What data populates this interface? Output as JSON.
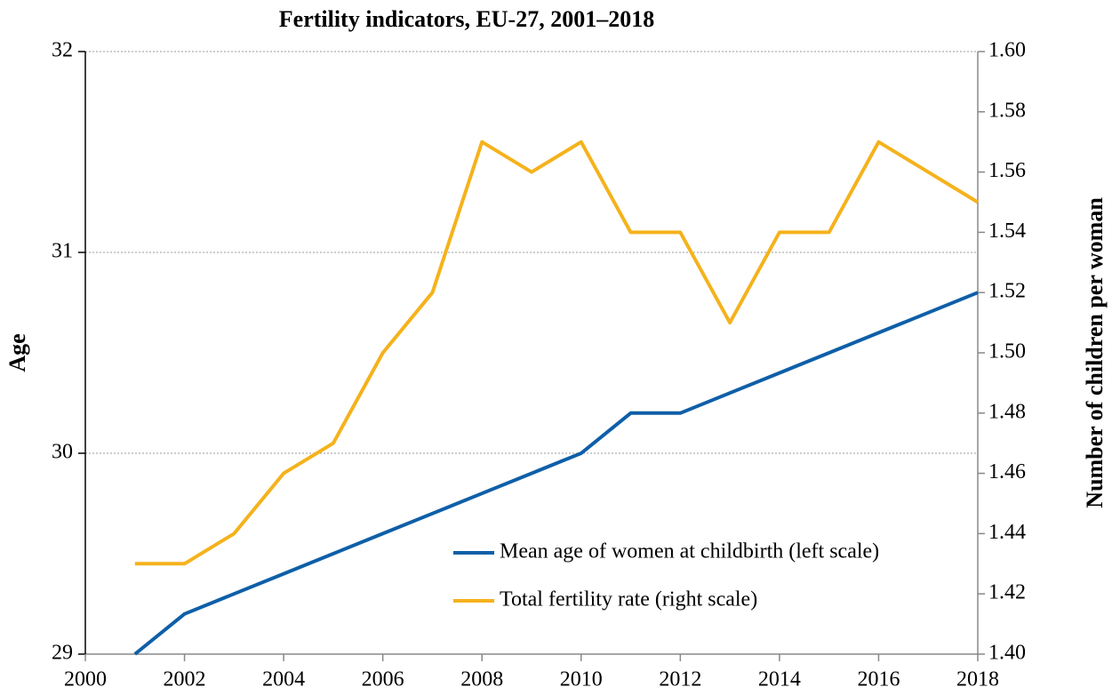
{
  "chart_data": {
    "type": "line",
    "title": "Fertility indicators, EU-27, 2001–2018",
    "y_label": "Age",
    "y2_label": "Number of children per woman",
    "x": [
      2001,
      2002,
      2003,
      2004,
      2005,
      2006,
      2007,
      2008,
      2009,
      2010,
      2011,
      2012,
      2013,
      2014,
      2015,
      2016,
      2017,
      2018
    ],
    "series": [
      {
        "name": "Mean age of women at childbirth (left scale)",
        "color": "#0e5fa8",
        "values": [
          29.0,
          29.2,
          29.3,
          29.4,
          29.5,
          29.6,
          29.7,
          29.8,
          29.9,
          30.0,
          30.2,
          30.2,
          30.3,
          30.4,
          30.5,
          30.6,
          30.7,
          30.8
        ]
      },
      {
        "name": "Total fertility rate (right scale)",
        "color": "#f5b21c",
        "axis": "y2",
        "values": [
          1.43,
          1.43,
          1.44,
          1.46,
          1.47,
          1.5,
          1.52,
          1.57,
          1.56,
          1.57,
          1.54,
          1.54,
          1.51,
          1.54,
          1.54,
          1.57,
          1.56,
          1.55
        ]
      }
    ],
    "xlim": [
      2000,
      2018
    ],
    "xticks": [
      2000,
      2002,
      2004,
      2006,
      2008,
      2010,
      2012,
      2014,
      2016,
      2018
    ],
    "ylim": [
      29,
      32
    ],
    "yticks": [
      29,
      30,
      31,
      32
    ],
    "y2lim": [
      1.4,
      1.6
    ],
    "y2ticks": [
      {
        "value": 1.4,
        "label": "1.40"
      },
      1.42,
      1.44,
      1.46,
      1.48,
      {
        "value": 1.5,
        "label": "1.50"
      },
      1.52,
      1.54,
      1.56,
      1.58,
      {
        "value": 1.6,
        "label": "1.60"
      }
    ],
    "grid": true,
    "legend": "lower right"
  }
}
